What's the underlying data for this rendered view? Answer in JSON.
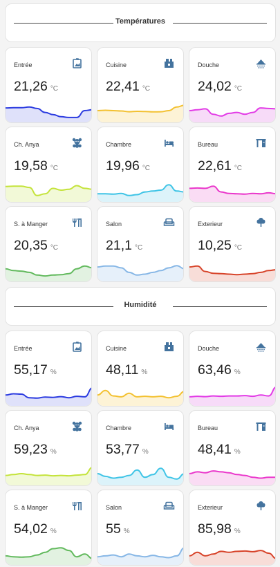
{
  "sections": [
    {
      "title": "Températures",
      "unit": "°C",
      "cards": [
        {
          "name": "Entrée",
          "value": "21,26",
          "icon": "door-icon",
          "color": "#2b3be0",
          "fill": "#dfe1fa",
          "curve": [
            0.65,
            0.66,
            0.66,
            0.7,
            0.62,
            0.4,
            0.28,
            0.16,
            0.12,
            0.12,
            0.5,
            0.55
          ]
        },
        {
          "name": "Cuisine",
          "value": "22,41",
          "icon": "fridge-icon",
          "color": "#f3c131",
          "fill": "#fdf3d6",
          "curve": [
            0.5,
            0.52,
            0.5,
            0.48,
            0.44,
            0.46,
            0.45,
            0.43,
            0.44,
            0.5,
            0.7,
            0.8
          ]
        },
        {
          "name": "Douche",
          "value": "24,02",
          "icon": "shower-icon",
          "color": "#e23be6",
          "fill": "#f7dbf8",
          "curve": [
            0.5,
            0.55,
            0.6,
            0.3,
            0.2,
            0.35,
            0.4,
            0.3,
            0.4,
            0.65,
            0.62,
            0.6
          ]
        },
        {
          "name": "Ch. Anya",
          "value": "19,58",
          "icon": "teddy-bear-icon",
          "color": "#c4e33a",
          "fill": "#f2f9d7",
          "curve": [
            0.7,
            0.72,
            0.72,
            0.65,
            0.2,
            0.3,
            0.6,
            0.5,
            0.55,
            0.75,
            0.6,
            0.55
          ]
        },
        {
          "name": "Chambre",
          "value": "19,96",
          "icon": "bed-icon",
          "color": "#3fc4e6",
          "fill": "#dcf3fa",
          "curve": [
            0.3,
            0.3,
            0.28,
            0.32,
            0.2,
            0.25,
            0.4,
            0.45,
            0.5,
            0.8,
            0.45,
            0.4
          ]
        },
        {
          "name": "Bureau",
          "value": "22,61",
          "icon": "desk-icon",
          "color": "#ea37cb",
          "fill": "#fadcf4",
          "curve": [
            0.6,
            0.62,
            0.6,
            0.72,
            0.4,
            0.32,
            0.3,
            0.28,
            0.32,
            0.3,
            0.35,
            0.3
          ]
        },
        {
          "name": "S. à Manger",
          "value": "20,35",
          "icon": "dining-icon",
          "color": "#63ba5e",
          "fill": "#e2f2e1",
          "curve": [
            0.55,
            0.45,
            0.42,
            0.35,
            0.2,
            0.15,
            0.2,
            0.22,
            0.28,
            0.55,
            0.7,
            0.6
          ]
        },
        {
          "name": "Salon",
          "value": "21,1",
          "icon": "sofa-icon",
          "color": "#87b7e6",
          "fill": "#e6f0fa",
          "curve": [
            0.65,
            0.7,
            0.7,
            0.6,
            0.35,
            0.2,
            0.25,
            0.35,
            0.45,
            0.6,
            0.72,
            0.55
          ]
        },
        {
          "name": "Exterieur",
          "value": "10,25",
          "icon": "tree-icon",
          "color": "#d74329",
          "fill": "#f8ddd8",
          "curve": [
            0.65,
            0.7,
            0.4,
            0.3,
            0.28,
            0.25,
            0.22,
            0.25,
            0.28,
            0.35,
            0.45,
            0.5
          ]
        }
      ]
    },
    {
      "title": "Humidité",
      "unit": "%",
      "cards": [
        {
          "name": "Entrée",
          "value": "55,17",
          "icon": "door-icon",
          "color": "#2b3be0",
          "fill": "#dfe1fa",
          "curve": [
            0.45,
            0.52,
            0.5,
            0.3,
            0.28,
            0.34,
            0.32,
            0.36,
            0.3,
            0.38,
            0.35,
            0.85
          ]
        },
        {
          "name": "Cuisine",
          "value": "48,11",
          "icon": "fridge-icon",
          "color": "#f3c131",
          "fill": "#fdf3d6",
          "curve": [
            0.45,
            0.7,
            0.4,
            0.35,
            0.55,
            0.35,
            0.38,
            0.35,
            0.38,
            0.3,
            0.38,
            0.65
          ]
        },
        {
          "name": "Douche",
          "value": "63,46",
          "icon": "shower-icon",
          "color": "#e23be6",
          "fill": "#f7dbf8",
          "curve": [
            0.35,
            0.38,
            0.36,
            0.4,
            0.38,
            0.4,
            0.4,
            0.42,
            0.38,
            0.45,
            0.4,
            0.9
          ]
        },
        {
          "name": "Ch. Anya",
          "value": "59,23",
          "icon": "teddy-bear-icon",
          "color": "#c4e33a",
          "fill": "#f2f9d7",
          "curve": [
            0.4,
            0.45,
            0.5,
            0.45,
            0.4,
            0.42,
            0.38,
            0.4,
            0.38,
            0.42,
            0.45,
            0.85
          ]
        },
        {
          "name": "Chambre",
          "value": "53,77",
          "icon": "bed-icon",
          "color": "#3fc4e6",
          "fill": "#dcf3fa",
          "curve": [
            0.5,
            0.35,
            0.25,
            0.3,
            0.4,
            0.7,
            0.3,
            0.45,
            0.8,
            0.3,
            0.2,
            0.5
          ]
        },
        {
          "name": "Bureau",
          "value": "48,41",
          "icon": "desk-icon",
          "color": "#ea37cb",
          "fill": "#fadcf4",
          "curve": [
            0.5,
            0.6,
            0.55,
            0.65,
            0.6,
            0.55,
            0.45,
            0.4,
            0.3,
            0.25,
            0.3,
            0.3
          ]
        },
        {
          "name": "S. à Manger",
          "value": "54,02",
          "icon": "dining-icon",
          "color": "#63ba5e",
          "fill": "#e2f2e1",
          "curve": [
            0.35,
            0.3,
            0.28,
            0.3,
            0.4,
            0.55,
            0.75,
            0.8,
            0.65,
            0.3,
            0.45,
            0.2
          ]
        },
        {
          "name": "Salon",
          "value": "55",
          "icon": "sofa-icon",
          "color": "#87b7e6",
          "fill": "#e6f0fa",
          "curve": [
            0.3,
            0.35,
            0.4,
            0.3,
            0.45,
            0.35,
            0.3,
            0.38,
            0.3,
            0.25,
            0.35,
            0.8
          ]
        },
        {
          "name": "Exterieur",
          "value": "85,98",
          "icon": "tree-icon",
          "color": "#d74329",
          "fill": "#f8ddd8",
          "curve": [
            0.35,
            0.55,
            0.35,
            0.45,
            0.6,
            0.55,
            0.6,
            0.62,
            0.58,
            0.65,
            0.5,
            0.2
          ]
        }
      ]
    }
  ]
}
